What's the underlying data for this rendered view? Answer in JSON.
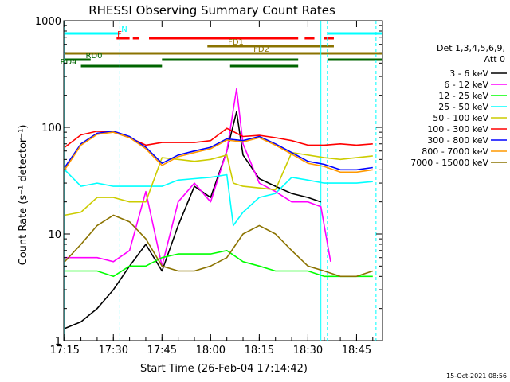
{
  "chart_data": {
    "type": "line",
    "title": "RHESSI Observing Summary Count Rates",
    "xlabel": "Start Time (26-Feb-04 17:14:42)",
    "ylabel": "Count Rate (s⁻¹ detector⁻¹)",
    "y_scale": "log",
    "ylim": [
      1,
      1000
    ],
    "y_ticks": [
      "1",
      "10",
      "100",
      "1000"
    ],
    "xlim": [
      "17:14:42",
      "18:53"
    ],
    "x_ticks": [
      "17:15",
      "17:30",
      "17:45",
      "18:00",
      "18:15",
      "18:30",
      "18:45"
    ],
    "grid": false,
    "legend_position": "right",
    "legend_header": [
      "Det 1,3,4,5,6,9,",
      "Att 0"
    ],
    "series": [
      {
        "name": "3 - 6 keV",
        "color": "#000000",
        "x": [
          "17:15",
          "17:20",
          "17:25",
          "17:30",
          "17:35",
          "17:40",
          "17:45",
          "17:50",
          "17:55",
          "18:00",
          "18:05",
          "18:08",
          "18:10",
          "18:15",
          "18:20",
          "18:25",
          "18:30",
          "18:34"
        ],
        "values": [
          1.3,
          1.5,
          2.0,
          3.0,
          5.0,
          8.0,
          4.5,
          12,
          28,
          22,
          60,
          140,
          55,
          33,
          28,
          24,
          22,
          20
        ]
      },
      {
        "name": "6 - 12 keV",
        "color": "#ff00ff",
        "x": [
          "17:15",
          "17:20",
          "17:25",
          "17:30",
          "17:35",
          "17:40",
          "17:45",
          "17:50",
          "17:55",
          "18:00",
          "18:05",
          "18:08",
          "18:10",
          "18:15",
          "18:20",
          "18:25",
          "18:30",
          "18:34",
          "18:37"
        ],
        "values": [
          6.0,
          6.0,
          6.0,
          5.5,
          7.0,
          25,
          5.0,
          20,
          30,
          20,
          60,
          230,
          70,
          30,
          25,
          20,
          20,
          18,
          5.5
        ]
      },
      {
        "name": "12 - 25 keV",
        "color": "#00ff00",
        "x": [
          "17:15",
          "17:20",
          "17:25",
          "17:30",
          "17:35",
          "17:40",
          "17:45",
          "17:50",
          "17:55",
          "18:00",
          "18:05",
          "18:10",
          "18:15",
          "18:20",
          "18:25",
          "18:30",
          "18:35",
          "18:40",
          "18:45",
          "18:50"
        ],
        "values": [
          4.5,
          4.5,
          4.5,
          4.0,
          5.0,
          5.0,
          6.0,
          6.5,
          6.5,
          6.5,
          7.0,
          5.5,
          5.0,
          4.5,
          4.5,
          4.5,
          4.0,
          4.0,
          4.0,
          4.0
        ]
      },
      {
        "name": "25 - 50 keV",
        "color": "#00ffff",
        "x": [
          "17:15",
          "17:20",
          "17:25",
          "17:30",
          "17:35",
          "17:40",
          "17:45",
          "17:50",
          "17:55",
          "18:00",
          "18:05",
          "18:07",
          "18:10",
          "18:15",
          "18:20",
          "18:25",
          "18:30",
          "18:35",
          "18:40",
          "18:45",
          "18:50"
        ],
        "values": [
          40,
          28,
          30,
          28,
          28,
          28,
          28,
          32,
          33,
          34,
          36,
          12,
          16,
          22,
          24,
          34,
          32,
          30,
          30,
          30,
          31
        ]
      },
      {
        "name": "50 - 100 keV",
        "color": "#cccc00",
        "x": [
          "17:15",
          "17:20",
          "17:25",
          "17:30",
          "17:35",
          "17:40",
          "17:45",
          "17:50",
          "17:55",
          "18:00",
          "18:05",
          "18:07",
          "18:10",
          "18:15",
          "18:20",
          "18:25",
          "18:30",
          "18:35",
          "18:40",
          "18:45",
          "18:50"
        ],
        "values": [
          15,
          16,
          22,
          22,
          20,
          20,
          52,
          50,
          48,
          50,
          55,
          30,
          28,
          27,
          26,
          58,
          55,
          52,
          50,
          52,
          54
        ]
      },
      {
        "name": "100 - 300 keV",
        "color": "#ff0000",
        "x": [
          "17:15",
          "17:20",
          "17:25",
          "17:30",
          "17:35",
          "17:40",
          "17:45",
          "17:50",
          "17:55",
          "18:00",
          "18:05",
          "18:10",
          "18:15",
          "18:20",
          "18:25",
          "18:30",
          "18:35",
          "18:40",
          "18:45",
          "18:50"
        ],
        "values": [
          65,
          85,
          92,
          90,
          80,
          68,
          72,
          72,
          72,
          75,
          98,
          82,
          84,
          80,
          75,
          68,
          68,
          70,
          68,
          70
        ]
      },
      {
        "name": "300 - 800 keV",
        "color": "#0000ff",
        "x": [
          "17:15",
          "17:20",
          "17:25",
          "17:30",
          "17:35",
          "17:40",
          "17:45",
          "17:50",
          "17:55",
          "18:00",
          "18:05",
          "18:10",
          "18:15",
          "18:20",
          "18:25",
          "18:30",
          "18:35",
          "18:40",
          "18:45",
          "18:50"
        ],
        "values": [
          42,
          70,
          88,
          92,
          82,
          65,
          46,
          55,
          60,
          65,
          78,
          75,
          82,
          70,
          58,
          48,
          45,
          40,
          40,
          42
        ]
      },
      {
        "name": "800 - 7000 keV",
        "color": "#ff9900",
        "x": [
          "17:15",
          "17:20",
          "17:25",
          "17:30",
          "17:35",
          "17:40",
          "17:45",
          "17:50",
          "17:55",
          "18:00",
          "18:05",
          "18:10",
          "18:15",
          "18:20",
          "18:25",
          "18:30",
          "18:35",
          "18:40",
          "18:45",
          "18:50"
        ],
        "values": [
          40,
          68,
          86,
          90,
          80,
          63,
          44,
          53,
          58,
          63,
          76,
          73,
          80,
          68,
          56,
          46,
          43,
          38,
          38,
          40
        ]
      },
      {
        "name": "7000 - 15000 keV",
        "color": "#8b7300",
        "x": [
          "17:15",
          "17:20",
          "17:25",
          "17:30",
          "17:35",
          "17:40",
          "17:45",
          "17:50",
          "17:55",
          "18:00",
          "18:05",
          "18:10",
          "18:15",
          "18:20",
          "18:25",
          "18:30",
          "18:35",
          "18:40",
          "18:45",
          "18:50"
        ],
        "values": [
          5.5,
          8.0,
          12,
          15,
          13,
          9.0,
          5.0,
          4.5,
          4.5,
          5.0,
          6.0,
          10,
          12,
          10,
          7.0,
          5.0,
          4.5,
          4.0,
          4.0,
          4.5
        ]
      }
    ],
    "flags": [
      {
        "label": "N",
        "color": "#00ffff",
        "segments": [
          [
            "17:15",
            "17:32"
          ],
          [
            "18:36",
            "18:53"
          ]
        ]
      },
      {
        "label": "F",
        "color": "#ff0000",
        "segments": [
          [
            "17:31",
            "17:35"
          ],
          [
            "17:36",
            "17:38"
          ],
          [
            "17:41",
            "18:27"
          ],
          [
            "18:29",
            "18:32"
          ],
          [
            "18:35",
            "18:38"
          ]
        ]
      },
      {
        "label": "FD1",
        "color": "#8b7300",
        "segments": [
          [
            "17:59",
            "18:38"
          ]
        ]
      },
      {
        "label": "FD2",
        "color": "#8b7300",
        "segments": [
          [
            "17:15",
            "18:53"
          ]
        ]
      },
      {
        "label": "RD0",
        "color": "#006400",
        "segments": [
          [
            "17:15",
            "17:23"
          ],
          [
            "17:45",
            "18:27"
          ],
          [
            "18:36",
            "18:53"
          ]
        ]
      },
      {
        "label": "RD4",
        "color": "#006400",
        "segments": [
          [
            "17:20",
            "17:45"
          ],
          [
            "18:06",
            "18:27"
          ]
        ]
      }
    ],
    "solid_vlines": [
      "17:15",
      "18:34"
    ],
    "dashed_vlines": [
      "17:32",
      "18:36",
      "18:51"
    ],
    "timestamp": "15-Oct-2021 08:56"
  }
}
